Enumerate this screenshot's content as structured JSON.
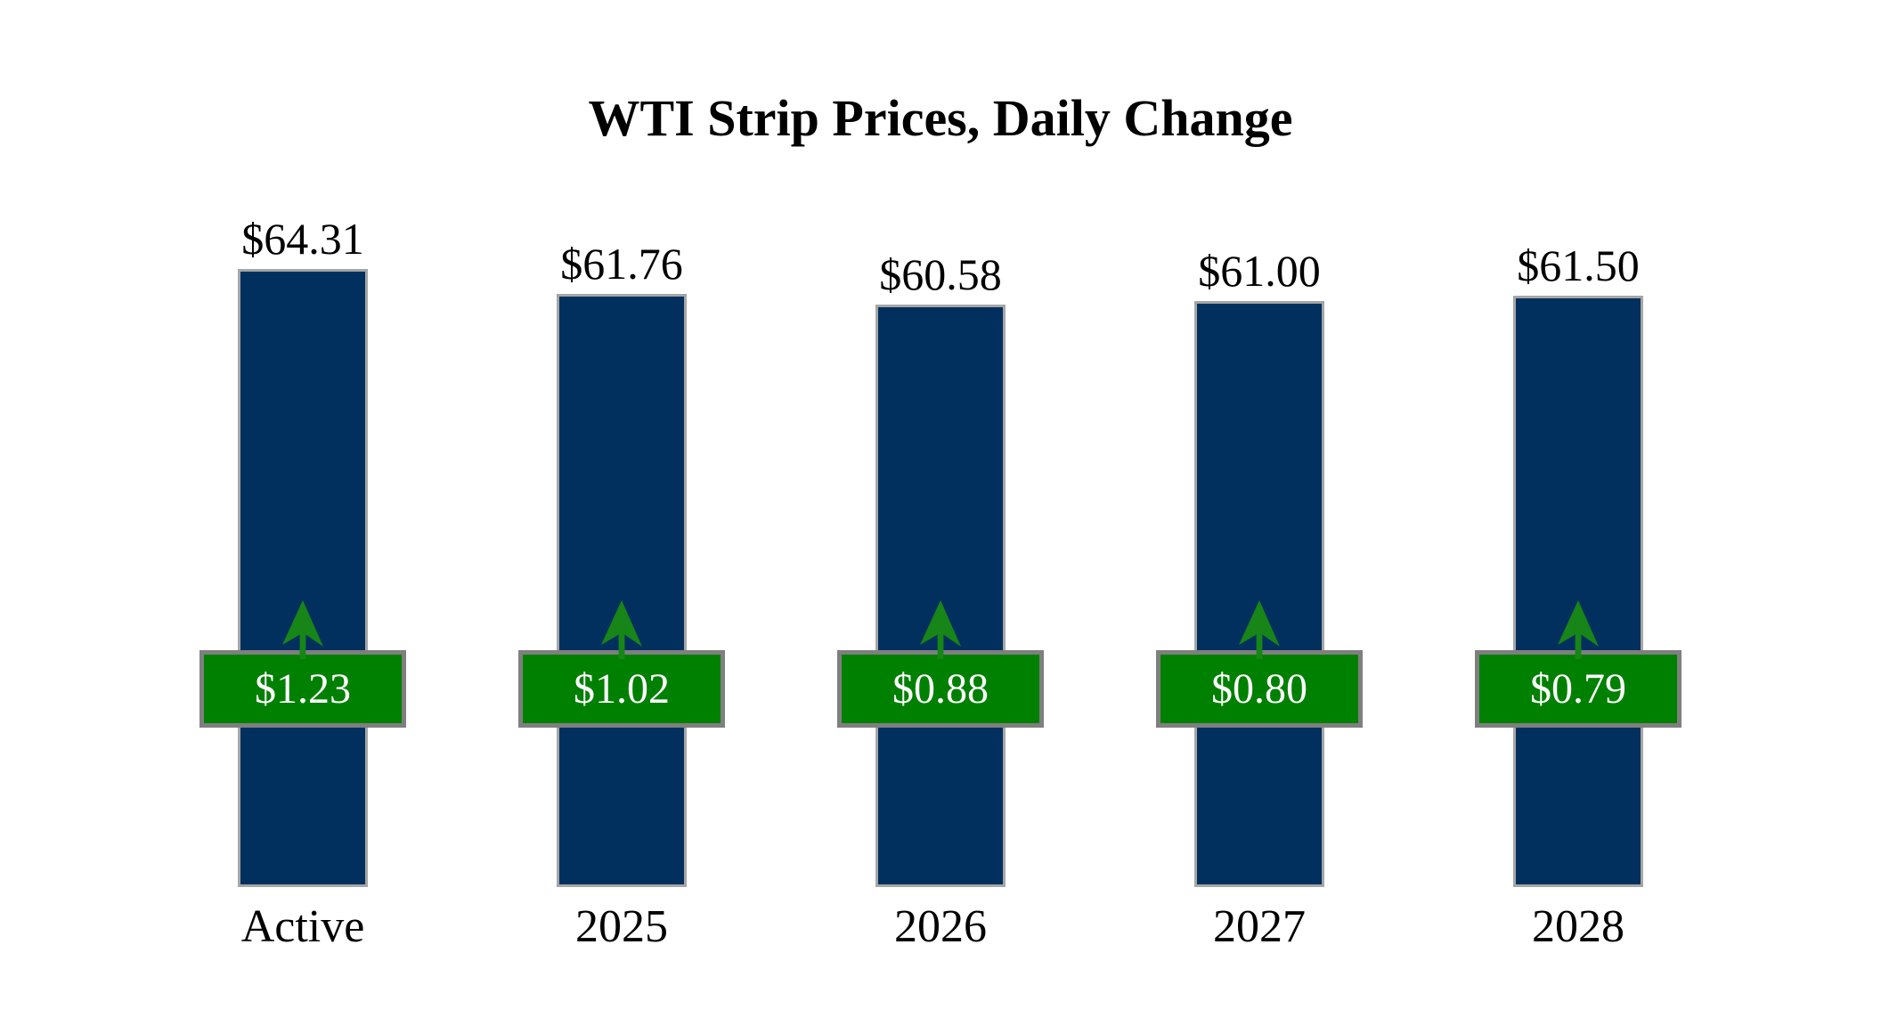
{
  "page": {
    "background": "#ffffff"
  },
  "title": "WTI Strip Prices, Daily Change",
  "chart_data": {
    "type": "bar",
    "title": "WTI Strip Prices, Daily Change",
    "categories": [
      "Active",
      "2025",
      "2026",
      "2027",
      "2028"
    ],
    "series": [
      {
        "name": "strip-price",
        "values": [
          64.31,
          61.76,
          60.58,
          61.0,
          61.5
        ],
        "labels": [
          "$64.31",
          "$61.76",
          "$60.58",
          "$61.00",
          "$61.50"
        ]
      },
      {
        "name": "daily-change",
        "values": [
          1.23,
          1.02,
          0.88,
          0.8,
          0.79
        ],
        "labels": [
          "$1.23",
          "$1.02",
          "$0.88",
          "$0.80",
          "$0.79"
        ],
        "direction": "up",
        "marker": "up-arrow"
      }
    ],
    "xlabel": "",
    "ylabel": "",
    "ylim": [
      0,
      65
    ],
    "grid": false,
    "legend": false,
    "colors": {
      "bar": "#02305E",
      "bar_border": "#A6A6A6",
      "badge": "#008000",
      "badge_border": "#7F7F7F",
      "badge_text": "#FFFFFF",
      "arrow": "#178517",
      "text": "#000000"
    }
  }
}
